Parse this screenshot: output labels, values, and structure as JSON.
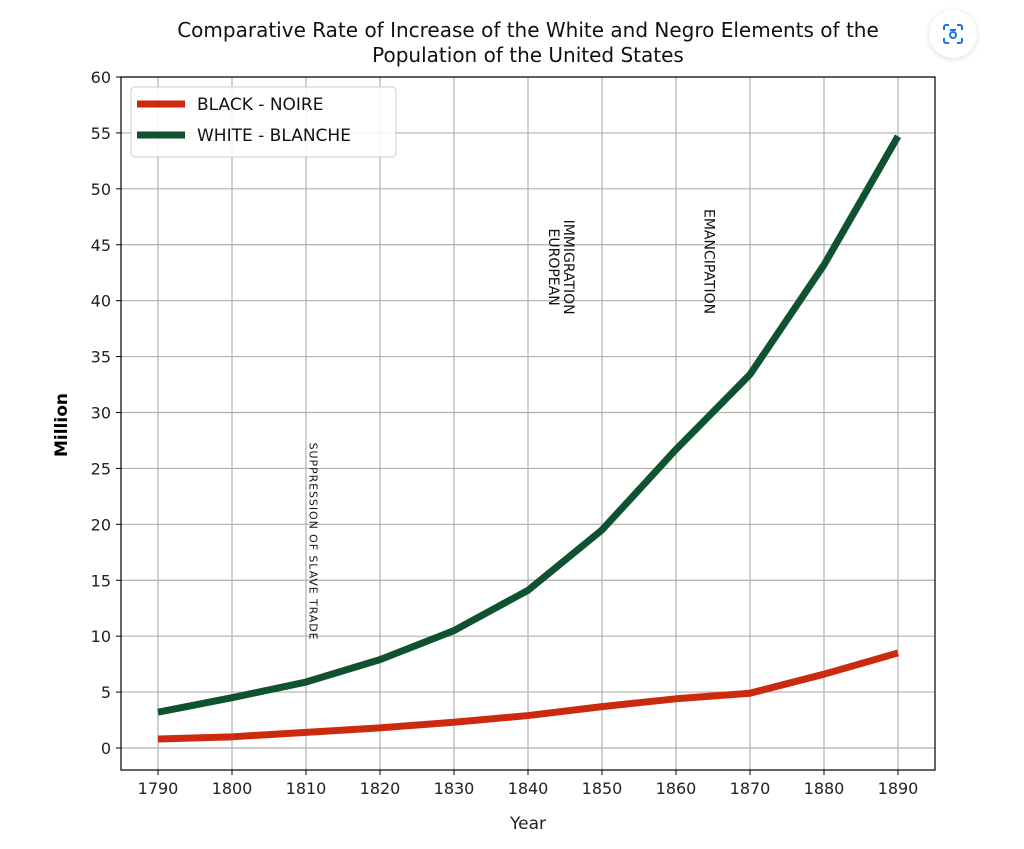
{
  "chart_data": {
    "type": "line",
    "title": "Comparative Rate of Increase of the White and Negro Elements of the\nPopulation of the United States",
    "title_lines": [
      "Comparative Rate of Increase of the White and Negro Elements of the",
      "Population of the United States"
    ],
    "xlabel": "Year",
    "ylabel": "Million",
    "x": [
      1790,
      1800,
      1810,
      1820,
      1830,
      1840,
      1850,
      1860,
      1870,
      1880,
      1890
    ],
    "xlim": [
      1785,
      1895
    ],
    "ylim": [
      -2,
      60
    ],
    "yticks": [
      0,
      5,
      10,
      15,
      20,
      25,
      30,
      35,
      40,
      45,
      50,
      55,
      60
    ],
    "grid": true,
    "legend_position": "top-left",
    "series": [
      {
        "name": "BLACK - NOIRE",
        "color": "#cc2a0f",
        "values": [
          0.8,
          1.0,
          1.4,
          1.8,
          2.3,
          2.9,
          3.7,
          4.4,
          4.9,
          6.6,
          8.5
        ]
      },
      {
        "name": "WHITE - BLANCHE",
        "color": "#0e5230",
        "values": [
          3.2,
          4.5,
          5.9,
          7.9,
          10.5,
          14.1,
          19.5,
          26.7,
          33.4,
          43.2,
          54.7
        ]
      }
    ],
    "annotations": [
      {
        "text": "SUPPRESSION OF SLAVE TRADE",
        "x": 1811,
        "y": 18.5,
        "lines": [
          "SUPPRESSION OF SLAVE TRADE"
        ]
      },
      {
        "text": "EUROPEAN\nIMMIGRATION",
        "x": 1844.5,
        "y": 43,
        "lines": [
          "EUROPEAN",
          "IMMIGRATION"
        ]
      },
      {
        "text": "EMANCIPATION",
        "x": 1864.5,
        "y": 43.5,
        "lines": [
          "EMANCIPATION"
        ]
      }
    ]
  },
  "overlay": {
    "icon": "lens-search-icon"
  }
}
